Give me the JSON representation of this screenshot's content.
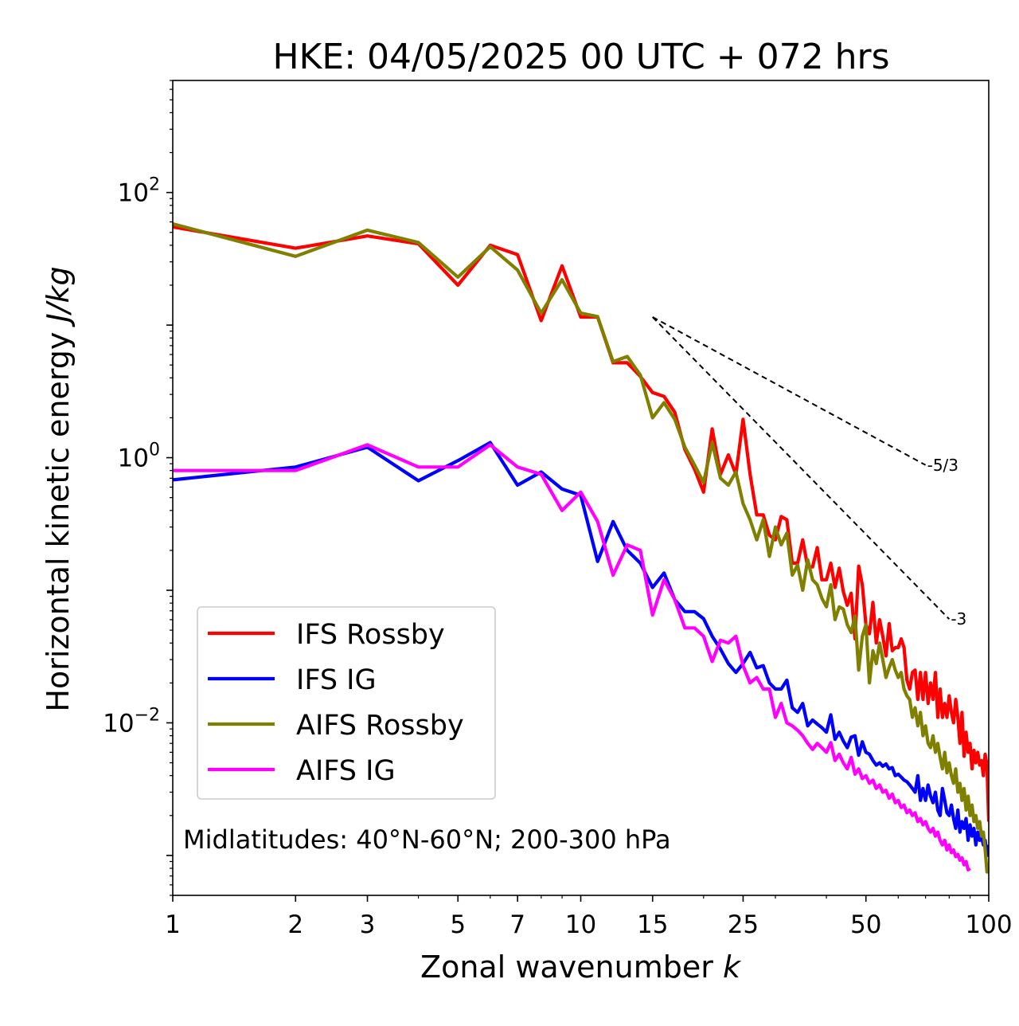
{
  "chart_data": {
    "type": "line",
    "title": "HKE: 04/05/2025 00 UTC + 072 hrs",
    "xlabel": "Zonal wavenumber",
    "xlabel_var": "k",
    "ylabel": "Horizontal kinetic energy",
    "ylabel_units": "J/kg",
    "xscale": "log",
    "yscale": "log",
    "xlim": [
      1,
      100
    ],
    "ylim": [
      0.0005,
      700
    ],
    "x_ticks": [
      1,
      2,
      3,
      5,
      7,
      10,
      15,
      25,
      50,
      100
    ],
    "x_tick_labels": [
      "1",
      "2",
      "3",
      "5",
      "7",
      "10",
      "15",
      "25",
      "50",
      "100"
    ],
    "y_ticks": [
      {
        "value": 100,
        "base": "10",
        "exp": "2"
      },
      {
        "value": 1,
        "base": "10",
        "exp": "0"
      },
      {
        "value": 0.01,
        "base": "10",
        "exp": "−2"
      }
    ],
    "legend_position": "lower-left",
    "annotation": "Midlatitudes: 40°N-60°N; 200-300 hPa",
    "reference_lines": [
      {
        "label": "-5/3",
        "x": [
          15,
          70
        ],
        "y": [
          11.5,
          0.88
        ]
      },
      {
        "label": "-3",
        "x": [
          15,
          80
        ],
        "y": [
          11.5,
          0.0606
        ]
      }
    ],
    "series": [
      {
        "name": "IFS Rossby",
        "color": "#ff0000",
        "x": [
          1,
          2,
          3,
          4,
          5,
          6,
          7,
          8,
          9,
          10,
          11,
          12,
          13,
          14,
          15,
          16,
          17,
          18,
          19,
          20,
          21,
          22,
          23,
          24,
          25,
          26,
          27,
          28,
          29,
          30,
          31,
          32,
          33,
          34,
          35,
          36,
          37,
          38,
          39,
          40,
          41,
          42,
          43,
          44,
          45,
          46,
          47,
          48,
          49,
          50,
          51,
          52,
          53,
          54,
          55,
          56,
          57,
          58,
          59,
          60,
          61,
          62,
          63,
          64,
          65,
          66,
          67,
          68,
          69,
          70,
          71,
          72,
          73,
          74,
          75,
          76,
          77,
          78,
          79,
          80,
          81,
          82,
          83,
          84,
          85,
          86,
          87,
          88,
          89,
          90,
          91,
          92,
          93,
          94,
          95,
          96,
          97,
          98,
          99,
          100
        ],
        "y": [
          55,
          38,
          47,
          41,
          20,
          40,
          34,
          10.8,
          28,
          11.5,
          11.5,
          5.2,
          5.2,
          4.1,
          3.1,
          2.9,
          2.2,
          1.15,
          0.82,
          0.55,
          1.65,
          0.75,
          1.05,
          0.75,
          1.95,
          0.75,
          0.37,
          0.37,
          0.26,
          0.24,
          0.36,
          0.34,
          0.16,
          0.16,
          0.24,
          0.15,
          0.15,
          0.21,
          0.12,
          0.12,
          0.16,
          0.105,
          0.147,
          0.098,
          0.077,
          0.095,
          0.043,
          0.152,
          0.11,
          0.055,
          0.047,
          0.081,
          0.04,
          0.06,
          0.045,
          0.032,
          0.056,
          0.035,
          0.037,
          0.037,
          0.043,
          0.037,
          0.021,
          0.018,
          0.024,
          0.025,
          0.015,
          0.024,
          0.015,
          0.024,
          0.014,
          0.02,
          0.015,
          0.024,
          0.011,
          0.018,
          0.011,
          0.014,
          0.011,
          0.016,
          0.012,
          0.01,
          0.015,
          0.011,
          0.007,
          0.012,
          0.0056,
          0.0085,
          0.006,
          0.007,
          0.0045,
          0.0062,
          0.005,
          0.006,
          0.0048,
          0.0052,
          0.004,
          0.0058,
          0.0048,
          0.0018
        ]
      },
      {
        "name": "IFS IG",
        "color": "#0000ff",
        "x": [
          1,
          2,
          3,
          4,
          5,
          6,
          7,
          8,
          9,
          10,
          11,
          12,
          13,
          14,
          15,
          16,
          17,
          18,
          19,
          20,
          21,
          22,
          23,
          24,
          25,
          26,
          27,
          28,
          29,
          30,
          31,
          32,
          33,
          34,
          35,
          36,
          37,
          38,
          39,
          40,
          41,
          42,
          43,
          44,
          45,
          46,
          47,
          48,
          49,
          50,
          51,
          52,
          53,
          54,
          55,
          56,
          57,
          58,
          59,
          60,
          61,
          62,
          63,
          64,
          65,
          66,
          67,
          68,
          69,
          70,
          71,
          72,
          73,
          74,
          75,
          76,
          77,
          78,
          79,
          80,
          81,
          82,
          83,
          84,
          85,
          86,
          87,
          88,
          89,
          90,
          91,
          92,
          93,
          94,
          95,
          96,
          97,
          98,
          99,
          100
        ],
        "y": [
          0.68,
          0.85,
          1.2,
          0.67,
          0.95,
          1.3,
          0.62,
          0.78,
          0.58,
          0.52,
          0.165,
          0.33,
          0.2,
          0.16,
          0.105,
          0.135,
          0.085,
          0.069,
          0.069,
          0.061,
          0.045,
          0.036,
          0.028,
          0.024,
          0.028,
          0.034,
          0.026,
          0.027,
          0.02,
          0.018,
          0.018,
          0.021,
          0.013,
          0.012,
          0.014,
          0.0095,
          0.0105,
          0.0098,
          0.0092,
          0.0085,
          0.0115,
          0.0075,
          0.0085,
          0.0073,
          0.0065,
          0.0078,
          0.008,
          0.0057,
          0.0072,
          0.006,
          0.0058,
          0.0052,
          0.0048,
          0.005,
          0.0047,
          0.0049,
          0.0045,
          0.0046,
          0.004,
          0.0041,
          0.0039,
          0.0037,
          0.0036,
          0.0034,
          0.0032,
          0.003,
          0.004,
          0.0026,
          0.0032,
          0.0026,
          0.0034,
          0.0028,
          0.0025,
          0.003,
          0.0022,
          0.002,
          0.0032,
          0.0026,
          0.0021,
          0.002,
          0.0024,
          0.0019,
          0.0016,
          0.0022,
          0.0015,
          0.0018,
          0.0016,
          0.0019,
          0.0013,
          0.0017,
          0.0014,
          0.0016,
          0.0012,
          0.0015,
          0.0013,
          0.0014,
          0.0012,
          0.0013,
          0.001,
          0.0012
        ]
      },
      {
        "name": "AIFS Rossby",
        "color": "#808000",
        "x": [
          1,
          2,
          3,
          4,
          5,
          6,
          7,
          8,
          9,
          10,
          11,
          12,
          13,
          14,
          15,
          16,
          17,
          18,
          19,
          20,
          21,
          22,
          23,
          24,
          25,
          26,
          27,
          28,
          29,
          30,
          31,
          32,
          33,
          34,
          35,
          36,
          37,
          38,
          39,
          40,
          41,
          42,
          43,
          44,
          45,
          46,
          47,
          48,
          49,
          50,
          51,
          52,
          53,
          54,
          55,
          56,
          57,
          58,
          59,
          60,
          61,
          62,
          63,
          64,
          65,
          66,
          67,
          68,
          69,
          70,
          71,
          72,
          73,
          74,
          75,
          76,
          77,
          78,
          79,
          80,
          81,
          82,
          83,
          84,
          85,
          86,
          87,
          88,
          89,
          90,
          91,
          92,
          93,
          94,
          95,
          96,
          97,
          98,
          99,
          100
        ],
        "y": [
          58,
          33,
          52,
          42,
          23,
          39,
          26,
          12.3,
          22,
          12.3,
          11.6,
          5.3,
          5.8,
          4.2,
          2.0,
          2.6,
          1.95,
          1.2,
          0.88,
          0.65,
          1.3,
          0.7,
          0.62,
          0.78,
          0.45,
          0.34,
          0.24,
          0.34,
          0.18,
          0.3,
          0.22,
          0.27,
          0.13,
          0.155,
          0.1,
          0.17,
          0.12,
          0.11,
          0.087,
          0.075,
          0.11,
          0.06,
          0.075,
          0.072,
          0.055,
          0.048,
          0.064,
          0.025,
          0.045,
          0.055,
          0.02,
          0.035,
          0.028,
          0.04,
          0.03,
          0.022,
          0.026,
          0.03,
          0.025,
          0.022,
          0.024,
          0.018,
          0.016,
          0.015,
          0.011,
          0.013,
          0.0095,
          0.012,
          0.008,
          0.0095,
          0.007,
          0.0065,
          0.008,
          0.006,
          0.007,
          0.0055,
          0.0045,
          0.006,
          0.0042,
          0.005,
          0.004,
          0.0035,
          0.0045,
          0.003,
          0.0035,
          0.0026,
          0.0032,
          0.0022,
          0.0028,
          0.002,
          0.0024,
          0.0018,
          0.002,
          0.0016,
          0.0018,
          0.0014,
          0.0015,
          0.0011,
          0.00075,
          0.0008
        ]
      },
      {
        "name": "AIFS IG",
        "color": "#ff00ff",
        "x": [
          1,
          2,
          3,
          4,
          5,
          6,
          7,
          8,
          9,
          10,
          11,
          12,
          13,
          14,
          15,
          16,
          17,
          18,
          19,
          20,
          21,
          22,
          23,
          24,
          25,
          26,
          27,
          28,
          29,
          30,
          31,
          32,
          33,
          34,
          35,
          36,
          37,
          38,
          39,
          40,
          41,
          42,
          43,
          44,
          45,
          46,
          47,
          48,
          49,
          50,
          51,
          52,
          53,
          54,
          55,
          56,
          57,
          58,
          59,
          60,
          61,
          62,
          63,
          64,
          65,
          66,
          67,
          68,
          69,
          70,
          71,
          72,
          73,
          74,
          75,
          76,
          77,
          78,
          79,
          80,
          81,
          82,
          83,
          84,
          85,
          86,
          87,
          88,
          89,
          90
        ],
        "y": [
          0.8,
          0.8,
          1.25,
          0.85,
          0.85,
          1.25,
          0.85,
          0.75,
          0.4,
          0.55,
          0.33,
          0.13,
          0.22,
          0.2,
          0.065,
          0.12,
          0.085,
          0.052,
          0.052,
          0.045,
          0.029,
          0.042,
          0.04,
          0.045,
          0.027,
          0.02,
          0.022,
          0.018,
          0.018,
          0.011,
          0.014,
          0.01,
          0.0095,
          0.0088,
          0.008,
          0.007,
          0.0063,
          0.007,
          0.0065,
          0.006,
          0.0071,
          0.0052,
          0.0058,
          0.005,
          0.0045,
          0.0055,
          0.0041,
          0.0045,
          0.0038,
          0.004,
          0.0035,
          0.0037,
          0.0032,
          0.0034,
          0.003,
          0.0031,
          0.0027,
          0.0029,
          0.0025,
          0.0026,
          0.0023,
          0.0024,
          0.0021,
          0.0022,
          0.002,
          0.0021,
          0.0018,
          0.0019,
          0.0017,
          0.0018,
          0.0016,
          0.0015,
          0.0016,
          0.0014,
          0.0015,
          0.0013,
          0.0012,
          0.0013,
          0.0011,
          0.0012,
          0.00105,
          0.0011,
          0.00098,
          0.00102,
          0.00092,
          0.00096,
          0.00085,
          0.0009,
          0.00078,
          0.0008
        ]
      }
    ]
  }
}
